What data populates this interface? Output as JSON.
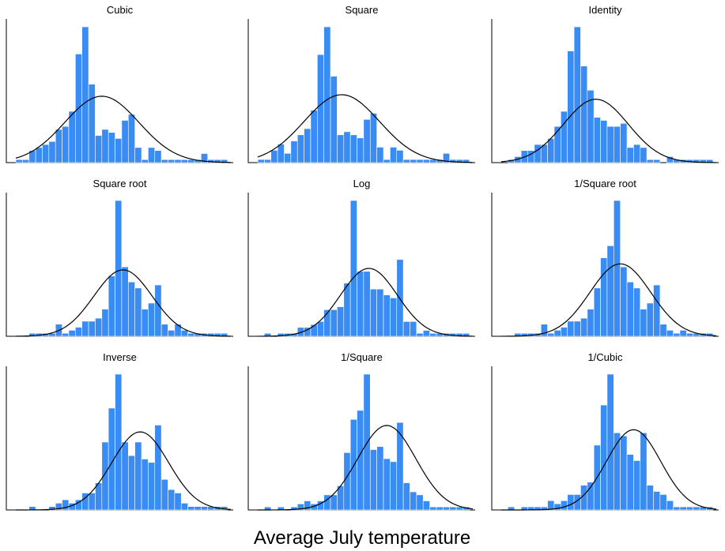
{
  "figure": {
    "xlabel": "Average July temperature",
    "bar_color": "#3a8cf5",
    "curve_color": "#000000"
  },
  "chart_data": [
    {
      "type": "bar",
      "title": "Cubic",
      "grid": false,
      "values": [
        1,
        1,
        4,
        5,
        6,
        7,
        11,
        12,
        17,
        36,
        45,
        26,
        9,
        11,
        10,
        8,
        14,
        16,
        5,
        1,
        5,
        4,
        1,
        1,
        1,
        1,
        1,
        1,
        3,
        1,
        1,
        1,
        1,
        1
      ],
      "curve": {
        "mean": 12.5,
        "sd": 5.6,
        "peak": 22
      }
    },
    {
      "type": "bar",
      "title": "Square",
      "grid": false,
      "values": [
        1,
        1,
        4,
        6,
        3,
        7,
        9,
        11,
        17,
        35,
        44,
        28,
        9,
        10,
        9,
        8,
        14,
        16,
        5,
        1,
        5,
        4,
        1,
        1,
        1,
        1,
        1,
        1,
        3,
        1,
        1,
        1,
        1,
        1
      ],
      "curve": {
        "mean": 12.2,
        "sd": 5.7,
        "peak": 22
      }
    },
    {
      "type": "bar",
      "title": "Identity",
      "grid": false,
      "values": [
        0,
        1,
        2,
        4,
        4,
        6,
        6,
        8,
        12,
        17,
        37,
        45,
        32,
        24,
        15,
        14,
        12,
        12,
        13,
        5,
        6,
        5,
        1,
        1,
        0,
        2,
        1,
        1,
        1,
        1,
        1,
        1,
        1,
        1
      ],
      "curve": {
        "mean": 13.8,
        "sd": 4.9,
        "peak": 21
      }
    },
    {
      "type": "bar",
      "title": "Square root",
      "grid": false,
      "values": [
        0,
        0,
        1,
        1,
        1,
        1,
        4,
        1,
        2,
        3,
        5,
        5,
        6,
        9,
        20,
        45,
        23,
        18,
        16,
        9,
        11,
        17,
        4,
        2,
        4,
        2,
        1,
        1,
        1,
        1,
        1,
        1,
        1,
        1
      ],
      "curve": {
        "mean": 15.7,
        "sd": 4.4,
        "peak": 22
      }
    },
    {
      "type": "bar",
      "title": "Log",
      "grid": false,
      "values": [
        0,
        1,
        0,
        1,
        1,
        1,
        3,
        3,
        4,
        5,
        9,
        9,
        10,
        18,
        46,
        22,
        22,
        16,
        16,
        14,
        13,
        26,
        5,
        5,
        1,
        2,
        1,
        1,
        1,
        1,
        1,
        1,
        1,
        1
      ],
      "curve": {
        "mean": 16.3,
        "sd": 4.3,
        "peak": 23
      }
    },
    {
      "type": "bar",
      "title": "1/Square root",
      "grid": false,
      "values": [
        0,
        0,
        1,
        1,
        1,
        1,
        4,
        1,
        2,
        3,
        5,
        5,
        6,
        9,
        16,
        26,
        30,
        45,
        23,
        18,
        16,
        9,
        11,
        17,
        4,
        2,
        1,
        2,
        1,
        1,
        1,
        1,
        1,
        1
      ],
      "curve": {
        "mean": 17.5,
        "sd": 4.6,
        "peak": 24
      }
    },
    {
      "type": "bar",
      "title": "Inverse",
      "grid": false,
      "values": [
        0,
        0,
        1,
        0,
        0,
        1,
        2,
        3,
        2,
        3,
        5,
        5,
        8,
        20,
        30,
        40,
        20,
        16,
        20,
        15,
        14,
        25,
        9,
        6,
        5,
        2,
        1,
        1,
        1,
        1,
        1,
        1,
        1,
        1
      ],
      "curve": {
        "mean": 18.3,
        "sd": 4.3,
        "peak": 23
      }
    },
    {
      "type": "bar",
      "title": "1/Square",
      "grid": false,
      "values": [
        0,
        1,
        0,
        1,
        0,
        1,
        2,
        3,
        2,
        3,
        5,
        5,
        8,
        19,
        30,
        33,
        45,
        20,
        21,
        17,
        16,
        29,
        9,
        6,
        5,
        3,
        1,
        1,
        1,
        1,
        1,
        1,
        1,
        1
      ],
      "curve": {
        "mean": 19.0,
        "sd": 4.4,
        "peak": 28
      }
    },
    {
      "type": "bar",
      "title": "1/Cubic",
      "grid": false,
      "values": [
        0,
        1,
        0,
        1,
        1,
        1,
        1,
        3,
        2,
        3,
        5,
        5,
        8,
        9,
        21,
        34,
        44,
        25,
        24,
        18,
        16,
        25,
        8,
        6,
        5,
        3,
        1,
        1,
        1,
        1,
        1,
        1,
        1,
        1
      ],
      "curve": {
        "mean": 19.5,
        "sd": 4.1,
        "peak": 26
      }
    }
  ]
}
